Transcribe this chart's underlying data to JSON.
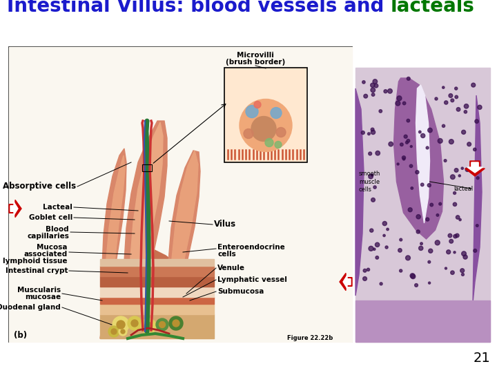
{
  "title_part1": "Intestinal Villus: blood vessels and ",
  "title_part2": "lacteals",
  "title_color1": "#1a1acc",
  "title_color2": "#007700",
  "title_fontsize": 20,
  "page_number": "21",
  "figure_label": "Figure 22.22b",
  "background_color": "#ffffff",
  "slide_number_fontsize": 14,
  "figure_label_fontsize": 6,
  "label_fontsize": 7.5,
  "bold_label_fontsize": 8.5
}
